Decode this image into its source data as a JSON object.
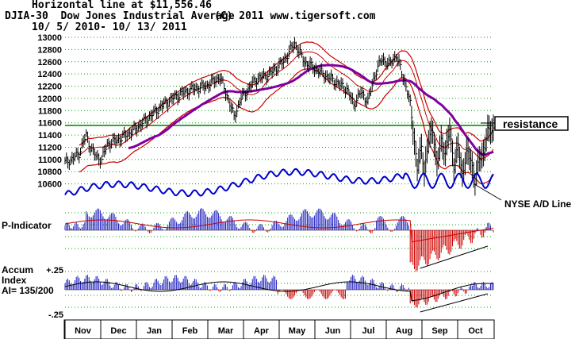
{
  "header": {
    "line1": "Horizontal line at $11,556.46",
    "line2_symbol": "DJIA-30  Dow Jones Industrial Average",
    "line2_copyright": "(C) 2011 www.tigersoft.com",
    "line3": "10/ 5/ 2010- 10/ 13/ 2011"
  },
  "annotations": {
    "resistance": "resistance",
    "nyse_ad": "NYSE A/D Line"
  },
  "colors": {
    "price_bars": "#000000",
    "upper_band": "#cc0000",
    "ma": "#8000a0",
    "ad_line": "#0000cc",
    "horizontal": "#008000",
    "positive": "#2020c0",
    "negative": "#d00000",
    "grid": "#00a000"
  },
  "chart_data": [
    {
      "type": "line",
      "title": "DJIA-30 Dow Jones Industrial Average",
      "ylabel": "",
      "ylim": [
        10400,
        13000
      ],
      "yticks": [
        10600,
        10800,
        11000,
        11200,
        11400,
        11600,
        11800,
        12000,
        12200,
        12400,
        12600,
        12800,
        13000
      ],
      "ytick_labels": [
        "10600",
        "10800",
        "11000",
        "11200",
        "11400",
        "11600",
        "11800",
        "12000",
        "12200",
        "12400",
        "12600",
        "12800",
        "13000"
      ],
      "x_months": [
        "Nov",
        "Dec",
        "Jan",
        "Feb",
        "Mar",
        "Apr",
        "May",
        "Jun",
        "Jul",
        "Aug",
        "Sep",
        "Oct"
      ],
      "horizontal_line": 11556.46,
      "price_close_anchors": [
        [
          0,
          10950
        ],
        [
          5,
          11000
        ],
        [
          10,
          11100
        ],
        [
          15,
          11400
        ],
        [
          18,
          11200
        ],
        [
          22,
          11050
        ],
        [
          26,
          11000
        ],
        [
          30,
          11250
        ],
        [
          40,
          11350
        ],
        [
          50,
          11500
        ],
        [
          60,
          11700
        ],
        [
          70,
          11900
        ],
        [
          80,
          12050
        ],
        [
          90,
          12150
        ],
        [
          100,
          12200
        ],
        [
          110,
          12350
        ],
        [
          115,
          12050
        ],
        [
          120,
          11700
        ],
        [
          125,
          12000
        ],
        [
          135,
          12300
        ],
        [
          145,
          12400
        ],
        [
          155,
          12600
        ],
        [
          160,
          12800
        ],
        [
          163,
          12900
        ],
        [
          170,
          12600
        ],
        [
          180,
          12450
        ],
        [
          190,
          12300
        ],
        [
          200,
          12150
        ],
        [
          205,
          11900
        ],
        [
          210,
          12100
        ],
        [
          215,
          11950
        ],
        [
          220,
          12400
        ],
        [
          225,
          12650
        ],
        [
          230,
          12550
        ],
        [
          235,
          12700
        ],
        [
          238,
          12500
        ],
        [
          242,
          12200
        ],
        [
          245,
          11900
        ],
        [
          248,
          11300
        ],
        [
          250,
          10850
        ],
        [
          253,
          11200
        ],
        [
          255,
          10800
        ],
        [
          258,
          11300
        ],
        [
          261,
          11500
        ],
        [
          264,
          10900
        ],
        [
          267,
          11300
        ],
        [
          270,
          11100
        ],
        [
          273,
          11500
        ],
        [
          276,
          10900
        ],
        [
          279,
          11200
        ],
        [
          282,
          10750
        ],
        [
          285,
          11100
        ],
        [
          288,
          11000
        ],
        [
          291,
          10650
        ],
        [
          294,
          11000
        ],
        [
          297,
          11100
        ],
        [
          300,
          11450
        ],
        [
          303,
          11500
        ]
      ]
    },
    {
      "type": "bar",
      "title": "P-Indicator",
      "ylim": [
        -1,
        1
      ]
    },
    {
      "type": "bar",
      "title": "Accum Index",
      "ytick_labels": [
        "+.25",
        "-.25"
      ],
      "ylim": [
        -0.25,
        0.25
      ],
      "label_lines": [
        "Accum",
        "Index",
        "AI= 135/200"
      ]
    }
  ]
}
